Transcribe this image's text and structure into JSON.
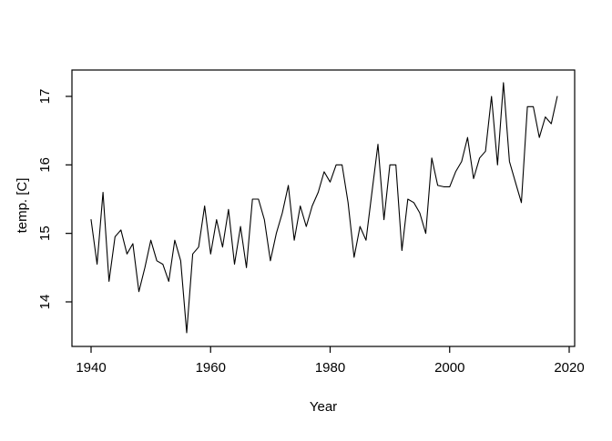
{
  "figure": {
    "description": "Base-R style line plot of annual mean temperature versus year",
    "background": "#ffffff",
    "frame_color": "#000000"
  },
  "chart_data": {
    "type": "line",
    "title": "",
    "xlabel": "Year",
    "ylabel": "temp. [C]",
    "x": [
      1940,
      1941,
      1942,
      1943,
      1944,
      1945,
      1946,
      1947,
      1948,
      1949,
      1950,
      1951,
      1952,
      1953,
      1954,
      1955,
      1956,
      1957,
      1958,
      1959,
      1960,
      1961,
      1962,
      1963,
      1964,
      1965,
      1966,
      1967,
      1968,
      1969,
      1970,
      1971,
      1972,
      1973,
      1974,
      1975,
      1976,
      1977,
      1978,
      1979,
      1980,
      1981,
      1982,
      1983,
      1984,
      1985,
      1986,
      1987,
      1988,
      1989,
      1990,
      1991,
      1992,
      1993,
      1994,
      1995,
      1996,
      1997,
      1998,
      1999,
      2000,
      2001,
      2002,
      2003,
      2004,
      2005,
      2006,
      2007,
      2008,
      2009,
      2010,
      2011,
      2012,
      2013,
      2014,
      2015,
      2016,
      2017,
      2018
    ],
    "values": [
      15.2,
      14.55,
      15.6,
      14.3,
      14.95,
      15.05,
      14.7,
      14.85,
      14.15,
      14.5,
      14.9,
      14.6,
      14.55,
      14.3,
      14.9,
      14.6,
      13.55,
      14.7,
      14.8,
      15.4,
      14.7,
      15.2,
      14.8,
      15.35,
      14.55,
      15.1,
      14.5,
      15.5,
      15.5,
      15.2,
      14.6,
      15.0,
      15.3,
      15.7,
      14.9,
      15.4,
      15.1,
      15.4,
      15.6,
      15.9,
      15.75,
      16.0,
      16.0,
      15.45,
      14.65,
      15.1,
      14.9,
      15.6,
      16.3,
      15.2,
      16.0,
      16.0,
      14.75,
      15.5,
      15.45,
      15.3,
      15.0,
      16.1,
      15.7,
      15.68,
      15.68,
      15.9,
      16.05,
      16.4,
      15.8,
      16.1,
      16.2,
      17.0,
      16.0,
      17.2,
      16.05,
      15.75,
      15.45,
      16.85,
      16.85,
      16.4,
      16.7,
      16.6,
      17.0
    ],
    "xticks": [
      1940,
      1960,
      1980,
      2000,
      2020
    ],
    "yticks": [
      14,
      15,
      16,
      17
    ],
    "xlim": [
      1936.8,
      2020.9
    ],
    "ylim": [
      13.35,
      17.4
    ],
    "line_color": "#000000",
    "grid": false,
    "legend": null
  }
}
